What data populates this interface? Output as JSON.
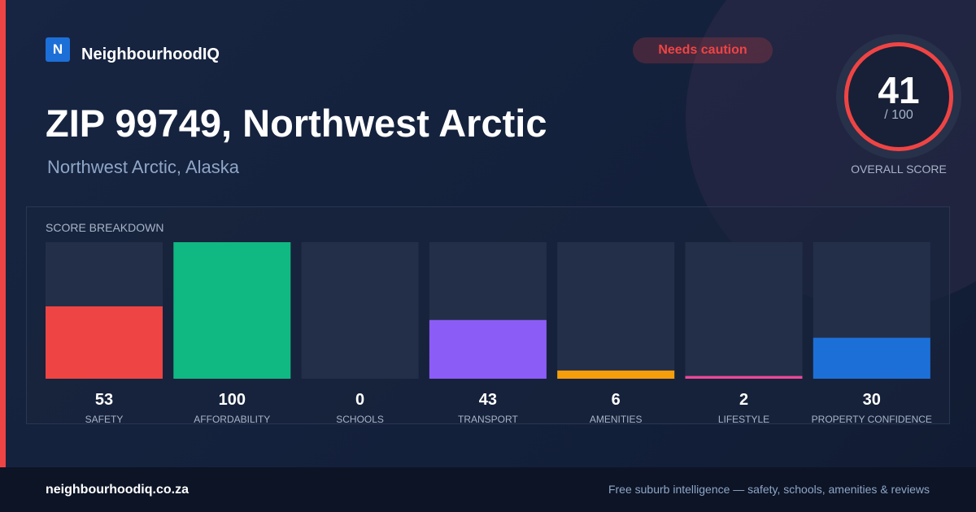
{
  "brand": {
    "logo": "N",
    "name": "NeighbourhoodIQ"
  },
  "badge": "Needs caution",
  "title": "ZIP 99749, Northwest Arctic",
  "subtitle": "Northwest Arctic, Alaska",
  "score": {
    "value": 41,
    "max_label": "/ 100",
    "label": "OVERALL SCORE"
  },
  "chart_data": {
    "type": "bar",
    "title": "SCORE BREAKDOWN",
    "categories": [
      "SAFETY",
      "AFFORDABILITY",
      "SCHOOLS",
      "TRANSPORT",
      "AMENITIES",
      "LIFESTYLE",
      "PROPERTY CONFIDENCE"
    ],
    "values": [
      53,
      100,
      0,
      43,
      6,
      2,
      30
    ],
    "colors": [
      "#ef4444",
      "#10b981",
      "#3b82f6",
      "#8b5cf6",
      "#f59e0b",
      "#ec4899",
      "#1d6fd8"
    ],
    "ylim": [
      0,
      100
    ]
  },
  "footer": {
    "site": "neighbourhoodiq.co.za",
    "tagline": "Free suburb intelligence — safety, schools, amenities & reviews"
  }
}
